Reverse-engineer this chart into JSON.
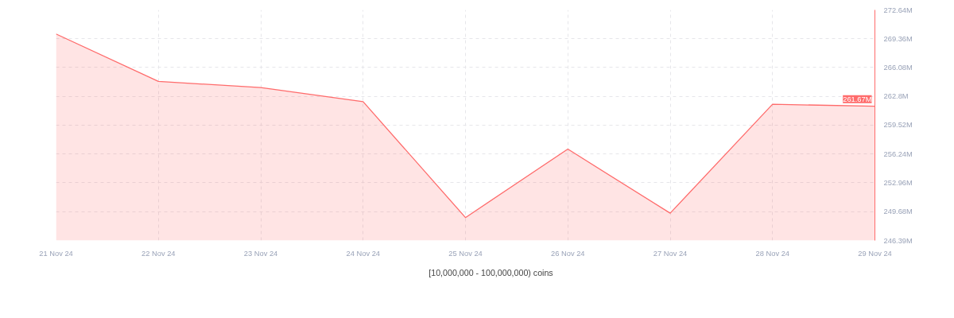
{
  "chart_data": {
    "type": "area",
    "categories": [
      "21 Nov 24",
      "22 Nov 24",
      "23 Nov 24",
      "24 Nov 24",
      "25 Nov 24",
      "26 Nov 24",
      "27 Nov 24",
      "28 Nov 24",
      "29 Nov 24"
    ],
    "series": [
      {
        "name": "[10,000,000 - 100,000,000) coins",
        "color": "#ff6b6b",
        "values": [
          269.9,
          264.5,
          263.8,
          262.2,
          249.0,
          256.8,
          249.5,
          261.9,
          261.67
        ]
      }
    ],
    "ylim": [
      246.39,
      272.64
    ],
    "yticks": [
      {
        "value": 246.39,
        "label": "246.39M"
      },
      {
        "value": 249.68,
        "label": "249.68M"
      },
      {
        "value": 252.96,
        "label": "252.96M"
      },
      {
        "value": 256.24,
        "label": "256.24M"
      },
      {
        "value": 259.52,
        "label": "259.52M"
      },
      {
        "value": 262.8,
        "label": "262.8M"
      },
      {
        "value": 266.08,
        "label": "266.08M"
      },
      {
        "value": 269.36,
        "label": "269.36M"
      },
      {
        "value": 272.64,
        "label": "272.64M"
      }
    ],
    "annotations": [
      {
        "text": "261.67M",
        "x": "29 Nov 24",
        "y": 261.67
      }
    ],
    "grid": true,
    "legend": "bottom"
  }
}
